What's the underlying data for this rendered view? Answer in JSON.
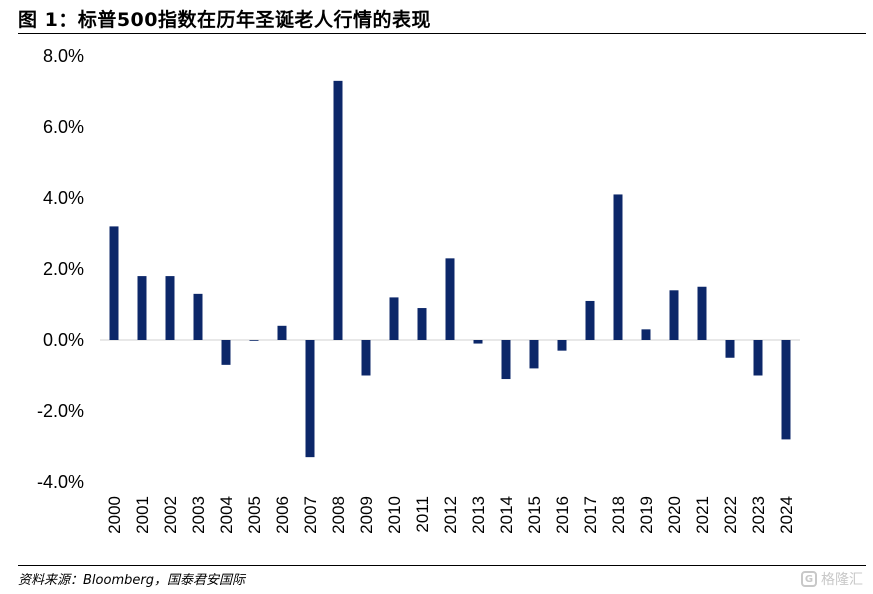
{
  "title": "图 1：标普500指数在历年圣诞老人行情的表现",
  "source": "资料来源：Bloomberg，国泰君安国际",
  "watermark": {
    "text": "格隆汇",
    "icon": "G",
    "color": "#c8c8c8"
  },
  "colors": {
    "bar": "#0c2769",
    "baseline": "#d0d0d0"
  },
  "chart_data": {
    "type": "bar",
    "title": "",
    "xlabel": "",
    "ylabel": "",
    "categories": [
      "2000",
      "2001",
      "2002",
      "2003",
      "2004",
      "2005",
      "2006",
      "2007",
      "2008",
      "2009",
      "2010",
      "2011",
      "2012",
      "2013",
      "2014",
      "2015",
      "2016",
      "2017",
      "2018",
      "2019",
      "2020",
      "2021",
      "2022",
      "2023",
      "2024"
    ],
    "values": [
      3.2,
      1.8,
      1.8,
      1.3,
      -0.7,
      0.0,
      0.4,
      -3.3,
      7.3,
      -1.0,
      1.2,
      0.9,
      2.3,
      -0.1,
      -1.1,
      -0.8,
      -0.3,
      1.1,
      4.1,
      0.3,
      1.4,
      1.5,
      -0.5,
      -1.0,
      -2.8
    ],
    "ylim": [
      -4.0,
      8.0
    ],
    "yticks": [
      8.0,
      6.0,
      4.0,
      2.0,
      0.0,
      -2.0,
      -4.0
    ],
    "ytick_labels": [
      "8.0%",
      "6.0%",
      "4.0%",
      "2.0%",
      "0.0%",
      "-2.0%",
      "-4.0%"
    ],
    "grid": false,
    "legend": "none"
  }
}
